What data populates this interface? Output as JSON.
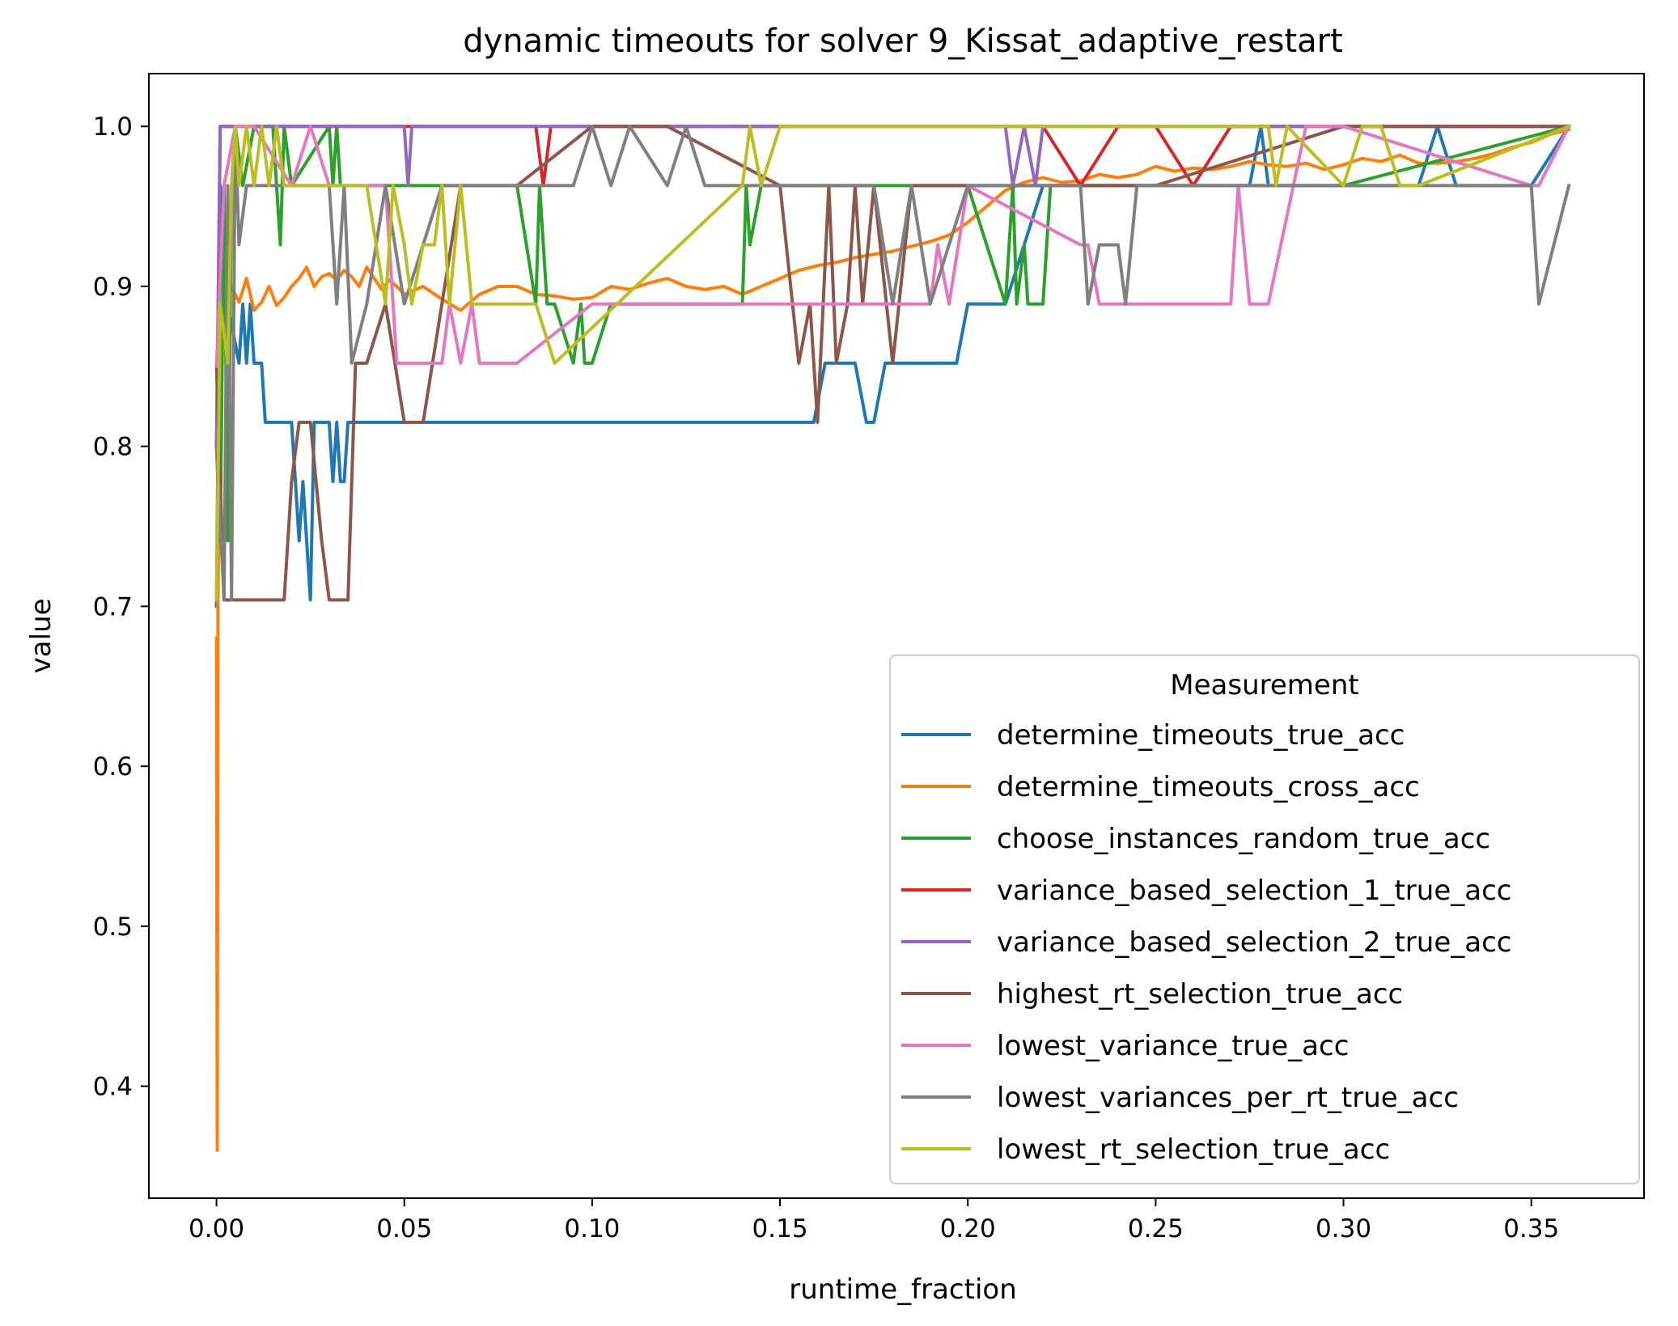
{
  "chart_data": {
    "type": "line",
    "title": "dynamic timeouts for solver 9_Kissat_adaptive_restart",
    "xlabel": "runtime_fraction",
    "ylabel": "value",
    "xlim": [
      -0.018,
      0.38
    ],
    "ylim": [
      0.33,
      1.033
    ],
    "xticks": [
      "0.00",
      "0.05",
      "0.10",
      "0.15",
      "0.20",
      "0.25",
      "0.30",
      "0.35"
    ],
    "yticks": [
      "0.4",
      "0.5",
      "0.6",
      "0.7",
      "0.8",
      "0.9",
      "1.0"
    ],
    "grid": false,
    "legend": {
      "title": "Measurement",
      "placement": "lower-right"
    },
    "series": [
      {
        "name": "determine_timeouts_true_acc",
        "color": "#1f77b4",
        "x": [
          0,
          0.001,
          0.003,
          0.006,
          0.007,
          0.008,
          0.009,
          0.01,
          0.012,
          0.013,
          0.02,
          0.021,
          0.022,
          0.023,
          0.024,
          0.025,
          0.026,
          0.03,
          0.031,
          0.032,
          0.033,
          0.034,
          0.035,
          0.08,
          0.12,
          0.159,
          0.162,
          0.165,
          0.17,
          0.173,
          0.175,
          0.178,
          0.18,
          0.19,
          0.197,
          0.2,
          0.21,
          0.22,
          0.25,
          0.275,
          0.278,
          0.28,
          0.3,
          0.32,
          0.325,
          0.33,
          0.35,
          0.36
        ],
        "y": [
          0.7,
          0.963,
          0.889,
          0.852,
          0.889,
          0.852,
          0.889,
          0.852,
          0.852,
          0.815,
          0.815,
          0.778,
          0.741,
          0.778,
          0.741,
          0.704,
          0.815,
          0.815,
          0.778,
          0.815,
          0.778,
          0.778,
          0.815,
          0.815,
          0.815,
          0.815,
          0.852,
          0.852,
          0.852,
          0.815,
          0.815,
          0.852,
          0.852,
          0.852,
          0.852,
          0.889,
          0.889,
          0.963,
          0.963,
          0.963,
          1.0,
          0.963,
          0.963,
          0.963,
          1.0,
          0.963,
          0.963,
          1.0
        ]
      },
      {
        "name": "determine_timeouts_cross_acc",
        "color": "#ff7f0e",
        "x": [
          0,
          0.0002,
          0.0004,
          0.001,
          0.002,
          0.004,
          0.006,
          0.008,
          0.01,
          0.012,
          0.014,
          0.016,
          0.018,
          0.02,
          0.022,
          0.024,
          0.026,
          0.028,
          0.03,
          0.032,
          0.034,
          0.036,
          0.038,
          0.04,
          0.042,
          0.044,
          0.046,
          0.048,
          0.05,
          0.055,
          0.06,
          0.065,
          0.07,
          0.075,
          0.08,
          0.085,
          0.09,
          0.095,
          0.1,
          0.105,
          0.11,
          0.115,
          0.12,
          0.125,
          0.13,
          0.135,
          0.14,
          0.145,
          0.15,
          0.155,
          0.16,
          0.165,
          0.17,
          0.175,
          0.18,
          0.185,
          0.19,
          0.195,
          0.2,
          0.205,
          0.21,
          0.215,
          0.22,
          0.225,
          0.23,
          0.235,
          0.24,
          0.245,
          0.25,
          0.255,
          0.26,
          0.265,
          0.27,
          0.275,
          0.28,
          0.285,
          0.29,
          0.295,
          0.3,
          0.305,
          0.31,
          0.315,
          0.32,
          0.325,
          0.33,
          0.335,
          0.34,
          0.345,
          0.35,
          0.355,
          0.36
        ],
        "y": [
          0.68,
          0.36,
          0.7,
          0.87,
          0.88,
          0.9,
          0.89,
          0.905,
          0.885,
          0.89,
          0.9,
          0.888,
          0.893,
          0.9,
          0.905,
          0.912,
          0.9,
          0.906,
          0.908,
          0.904,
          0.91,
          0.906,
          0.9,
          0.912,
          0.905,
          0.898,
          0.904,
          0.9,
          0.895,
          0.9,
          0.892,
          0.885,
          0.895,
          0.9,
          0.9,
          0.895,
          0.894,
          0.892,
          0.893,
          0.9,
          0.898,
          0.902,
          0.905,
          0.9,
          0.898,
          0.9,
          0.895,
          0.9,
          0.905,
          0.91,
          0.913,
          0.915,
          0.918,
          0.92,
          0.922,
          0.925,
          0.928,
          0.932,
          0.94,
          0.95,
          0.96,
          0.965,
          0.968,
          0.965,
          0.966,
          0.97,
          0.968,
          0.97,
          0.975,
          0.972,
          0.974,
          0.973,
          0.975,
          0.978,
          0.976,
          0.975,
          0.977,
          0.973,
          0.976,
          0.98,
          0.978,
          0.982,
          0.977,
          0.977,
          0.978,
          0.98,
          0.983,
          0.987,
          0.99,
          0.995,
          0.998
        ]
      },
      {
        "name": "choose_instances_random_true_acc",
        "color": "#2ca02c",
        "x": [
          0,
          0.001,
          0.002,
          0.003,
          0.004,
          0.005,
          0.007,
          0.01,
          0.015,
          0.017,
          0.018,
          0.02,
          0.03,
          0.031,
          0.032,
          0.033,
          0.035,
          0.04,
          0.06,
          0.08,
          0.085,
          0.086,
          0.088,
          0.09,
          0.095,
          0.097,
          0.098,
          0.1,
          0.105,
          0.11,
          0.13,
          0.14,
          0.141,
          0.142,
          0.145,
          0.16,
          0.18,
          0.2,
          0.21,
          0.212,
          0.213,
          0.215,
          0.216,
          0.218,
          0.22,
          0.222,
          0.225,
          0.25,
          0.3,
          0.36
        ],
        "y": [
          0.8,
          0.74,
          0.963,
          0.741,
          0.963,
          1.0,
          0.963,
          1.0,
          1.0,
          0.926,
          1.0,
          0.963,
          1.0,
          0.963,
          1.0,
          0.963,
          0.963,
          0.963,
          0.963,
          0.963,
          0.889,
          0.963,
          0.889,
          0.889,
          0.852,
          0.889,
          0.852,
          0.852,
          0.889,
          0.889,
          0.889,
          0.889,
          0.963,
          0.926,
          0.963,
          0.963,
          0.963,
          0.963,
          0.889,
          0.963,
          0.889,
          0.926,
          0.889,
          0.889,
          0.889,
          0.963,
          0.963,
          0.963,
          0.963,
          1.0
        ]
      },
      {
        "name": "variance_based_selection_1_true_acc",
        "color": "#d62728",
        "x": [
          0,
          0.001,
          0.003,
          0.05,
          0.085,
          0.087,
          0.089,
          0.1,
          0.2,
          0.21,
          0.22,
          0.23,
          0.24,
          0.25,
          0.26,
          0.27,
          0.28,
          0.3,
          0.36
        ],
        "y": [
          0.8,
          1.0,
          1.0,
          1.0,
          1.0,
          0.963,
          1.0,
          1.0,
          1.0,
          1.0,
          1.0,
          0.963,
          1.0,
          1.0,
          0.963,
          1.0,
          1.0,
          1.0,
          1.0
        ]
      },
      {
        "name": "variance_based_selection_2_true_acc",
        "color": "#9467bd",
        "x": [
          0,
          0.001,
          0.05,
          0.051,
          0.052,
          0.1,
          0.2,
          0.21,
          0.212,
          0.215,
          0.218,
          0.22,
          0.25,
          0.36
        ],
        "y": [
          0.8,
          1.0,
          1.0,
          0.963,
          1.0,
          1.0,
          1.0,
          1.0,
          0.963,
          1.0,
          0.963,
          1.0,
          1.0,
          1.0
        ]
      },
      {
        "name": "highest_rt_selection_true_acc",
        "color": "#8c564b",
        "x": [
          0,
          0.002,
          0.01,
          0.018,
          0.02,
          0.022,
          0.025,
          0.028,
          0.03,
          0.035,
          0.037,
          0.04,
          0.045,
          0.05,
          0.055,
          0.06,
          0.065,
          0.07,
          0.075,
          0.08,
          0.1,
          0.12,
          0.15,
          0.155,
          0.158,
          0.16,
          0.163,
          0.165,
          0.168,
          0.17,
          0.172,
          0.175,
          0.18,
          0.185,
          0.19,
          0.2,
          0.25,
          0.3,
          0.36
        ],
        "y": [
          0.85,
          0.704,
          0.704,
          0.704,
          0.778,
          0.815,
          0.815,
          0.741,
          0.704,
          0.704,
          0.852,
          0.852,
          0.889,
          0.815,
          0.815,
          0.889,
          0.963,
          0.963,
          0.963,
          0.963,
          1.0,
          1.0,
          0.963,
          0.852,
          0.889,
          0.815,
          0.963,
          0.852,
          0.889,
          0.963,
          0.889,
          0.963,
          0.852,
          0.963,
          0.963,
          0.963,
          0.963,
          1.0,
          1.0
        ]
      },
      {
        "name": "lowest_variance_true_acc",
        "color": "#e377c2",
        "x": [
          0,
          0.002,
          0.005,
          0.01,
          0.02,
          0.025,
          0.03,
          0.045,
          0.048,
          0.05,
          0.06,
          0.062,
          0.065,
          0.068,
          0.07,
          0.075,
          0.08,
          0.1,
          0.15,
          0.18,
          0.19,
          0.192,
          0.195,
          0.2,
          0.23,
          0.232,
          0.235,
          0.24,
          0.27,
          0.272,
          0.275,
          0.28,
          0.29,
          0.3,
          0.35,
          0.352,
          0.36
        ],
        "y": [
          0.85,
          0.963,
          1.0,
          1.0,
          0.963,
          1.0,
          0.963,
          0.963,
          0.852,
          0.852,
          0.852,
          0.889,
          0.852,
          0.889,
          0.852,
          0.852,
          0.852,
          0.889,
          0.889,
          0.889,
          0.889,
          0.926,
          0.889,
          0.963,
          0.926,
          0.926,
          0.889,
          0.889,
          0.889,
          0.963,
          0.889,
          0.889,
          1.0,
          1.0,
          0.963,
          0.963,
          1.0
        ]
      },
      {
        "name": "lowest_variances_per_rt_true_acc",
        "color": "#7f7f7f",
        "x": [
          0,
          0.002,
          0.003,
          0.004,
          0.005,
          0.006,
          0.008,
          0.01,
          0.03,
          0.032,
          0.034,
          0.036,
          0.04,
          0.045,
          0.05,
          0.06,
          0.09,
          0.095,
          0.1,
          0.105,
          0.11,
          0.12,
          0.125,
          0.13,
          0.14,
          0.15,
          0.175,
          0.18,
          0.185,
          0.19,
          0.2,
          0.21,
          0.22,
          0.23,
          0.232,
          0.235,
          0.24,
          0.242,
          0.245,
          0.25,
          0.3,
          0.35,
          0.352,
          0.36
        ],
        "y": [
          0.8,
          0.704,
          0.963,
          0.704,
          1.0,
          0.926,
          0.963,
          0.963,
          0.963,
          0.889,
          0.963,
          0.852,
          0.889,
          0.963,
          0.889,
          0.963,
          0.963,
          0.963,
          1.0,
          0.963,
          1.0,
          0.963,
          1.0,
          0.963,
          0.963,
          0.963,
          0.963,
          0.889,
          0.963,
          0.889,
          0.963,
          0.963,
          0.963,
          0.963,
          0.889,
          0.926,
          0.926,
          0.889,
          0.963,
          0.963,
          0.963,
          0.963,
          0.889,
          0.963
        ]
      },
      {
        "name": "lowest_rt_selection_true_acc",
        "color": "#bcbd22",
        "x": [
          0,
          0.001,
          0.003,
          0.004,
          0.005,
          0.006,
          0.008,
          0.01,
          0.012,
          0.014,
          0.016,
          0.018,
          0.02,
          0.04,
          0.045,
          0.047,
          0.05,
          0.052,
          0.055,
          0.058,
          0.06,
          0.062,
          0.065,
          0.068,
          0.07,
          0.085,
          0.09,
          0.14,
          0.142,
          0.145,
          0.15,
          0.2,
          0.25,
          0.28,
          0.282,
          0.285,
          0.3,
          0.305,
          0.31,
          0.315,
          0.32,
          0.36
        ],
        "y": [
          0.704,
          0.889,
          0.852,
          0.963,
          1.0,
          0.963,
          1.0,
          0.963,
          1.0,
          0.963,
          1.0,
          0.963,
          0.963,
          0.963,
          0.889,
          0.963,
          0.926,
          0.889,
          0.926,
          0.926,
          0.963,
          0.889,
          0.963,
          0.889,
          0.889,
          0.889,
          0.852,
          0.963,
          1.0,
          0.963,
          1.0,
          1.0,
          1.0,
          1.0,
          0.963,
          1.0,
          0.963,
          1.0,
          1.0,
          0.963,
          0.963,
          1.0
        ]
      }
    ]
  }
}
